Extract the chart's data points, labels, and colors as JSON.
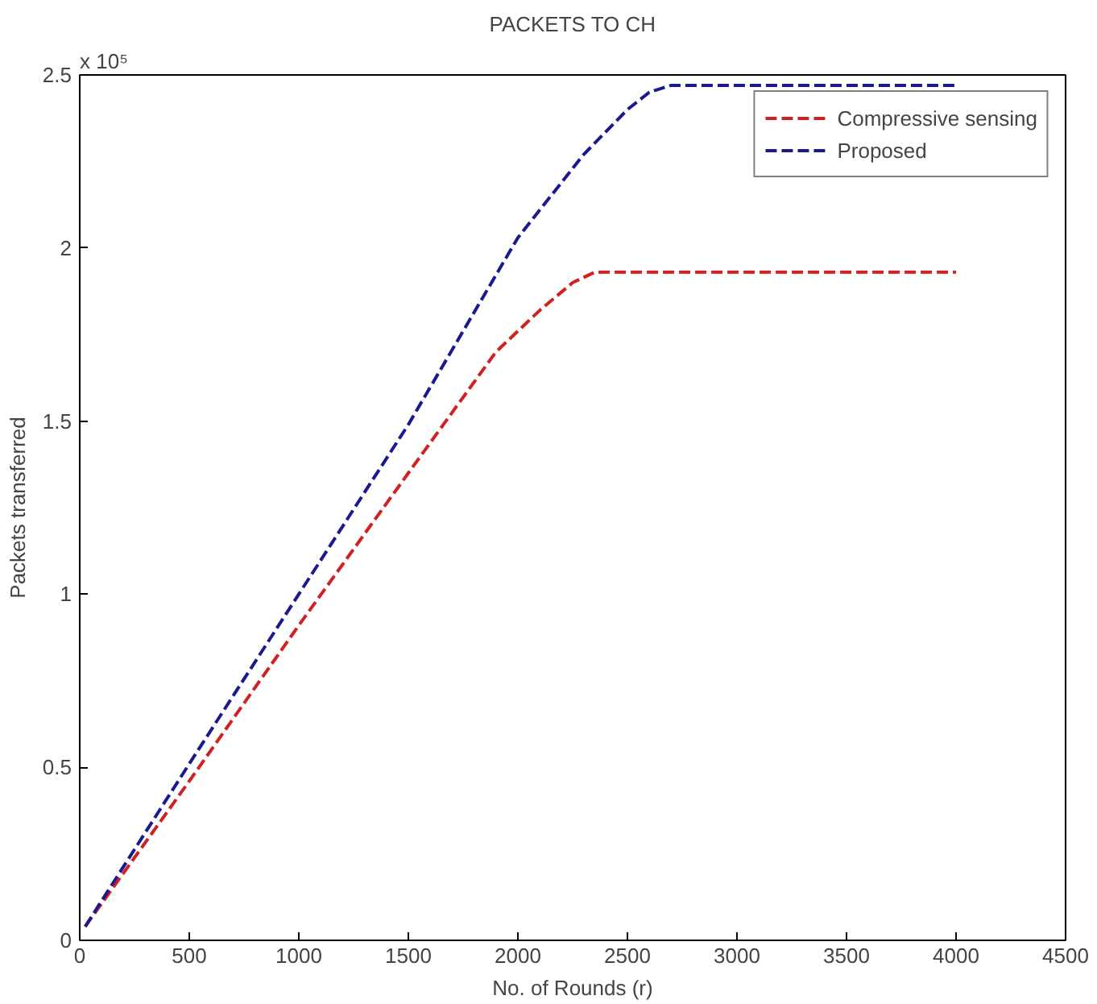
{
  "chart_data": {
    "type": "line",
    "title": "PACKETS TO CH",
    "xlabel": "No. of Rounds (r)",
    "ylabel": "Packets transferred",
    "annotations": [
      "x 10⁵"
    ],
    "series": [
      {
        "name": "Compressive sensing",
        "color": "#d02020",
        "x": [
          25,
          500,
          1000,
          1500,
          1900,
          2100,
          2250,
          2350,
          4000
        ],
        "values": [
          0.04,
          0.46,
          0.91,
          1.35,
          1.7,
          1.82,
          1.9,
          1.93,
          1.93
        ]
      },
      {
        "name": "Proposed",
        "color": "#1a1a90",
        "x": [
          25,
          500,
          1000,
          1500,
          2000,
          2300,
          2500,
          2600,
          2700,
          4000
        ],
        "values": [
          0.04,
          0.51,
          1.0,
          1.49,
          2.03,
          2.27,
          2.4,
          2.45,
          2.47,
          2.47
        ]
      }
    ],
    "xlim": [
      0,
      4500
    ],
    "xticks": [
      0,
      500,
      1000,
      1500,
      2000,
      2500,
      3000,
      3500,
      4000,
      4500
    ],
    "ylim": [
      0,
      2.5
    ],
    "yticks": [
      0,
      0.5,
      1,
      1.5,
      2,
      2.5
    ],
    "grid": false,
    "legend": "top right",
    "marker": "none",
    "line_style": "dashed"
  }
}
